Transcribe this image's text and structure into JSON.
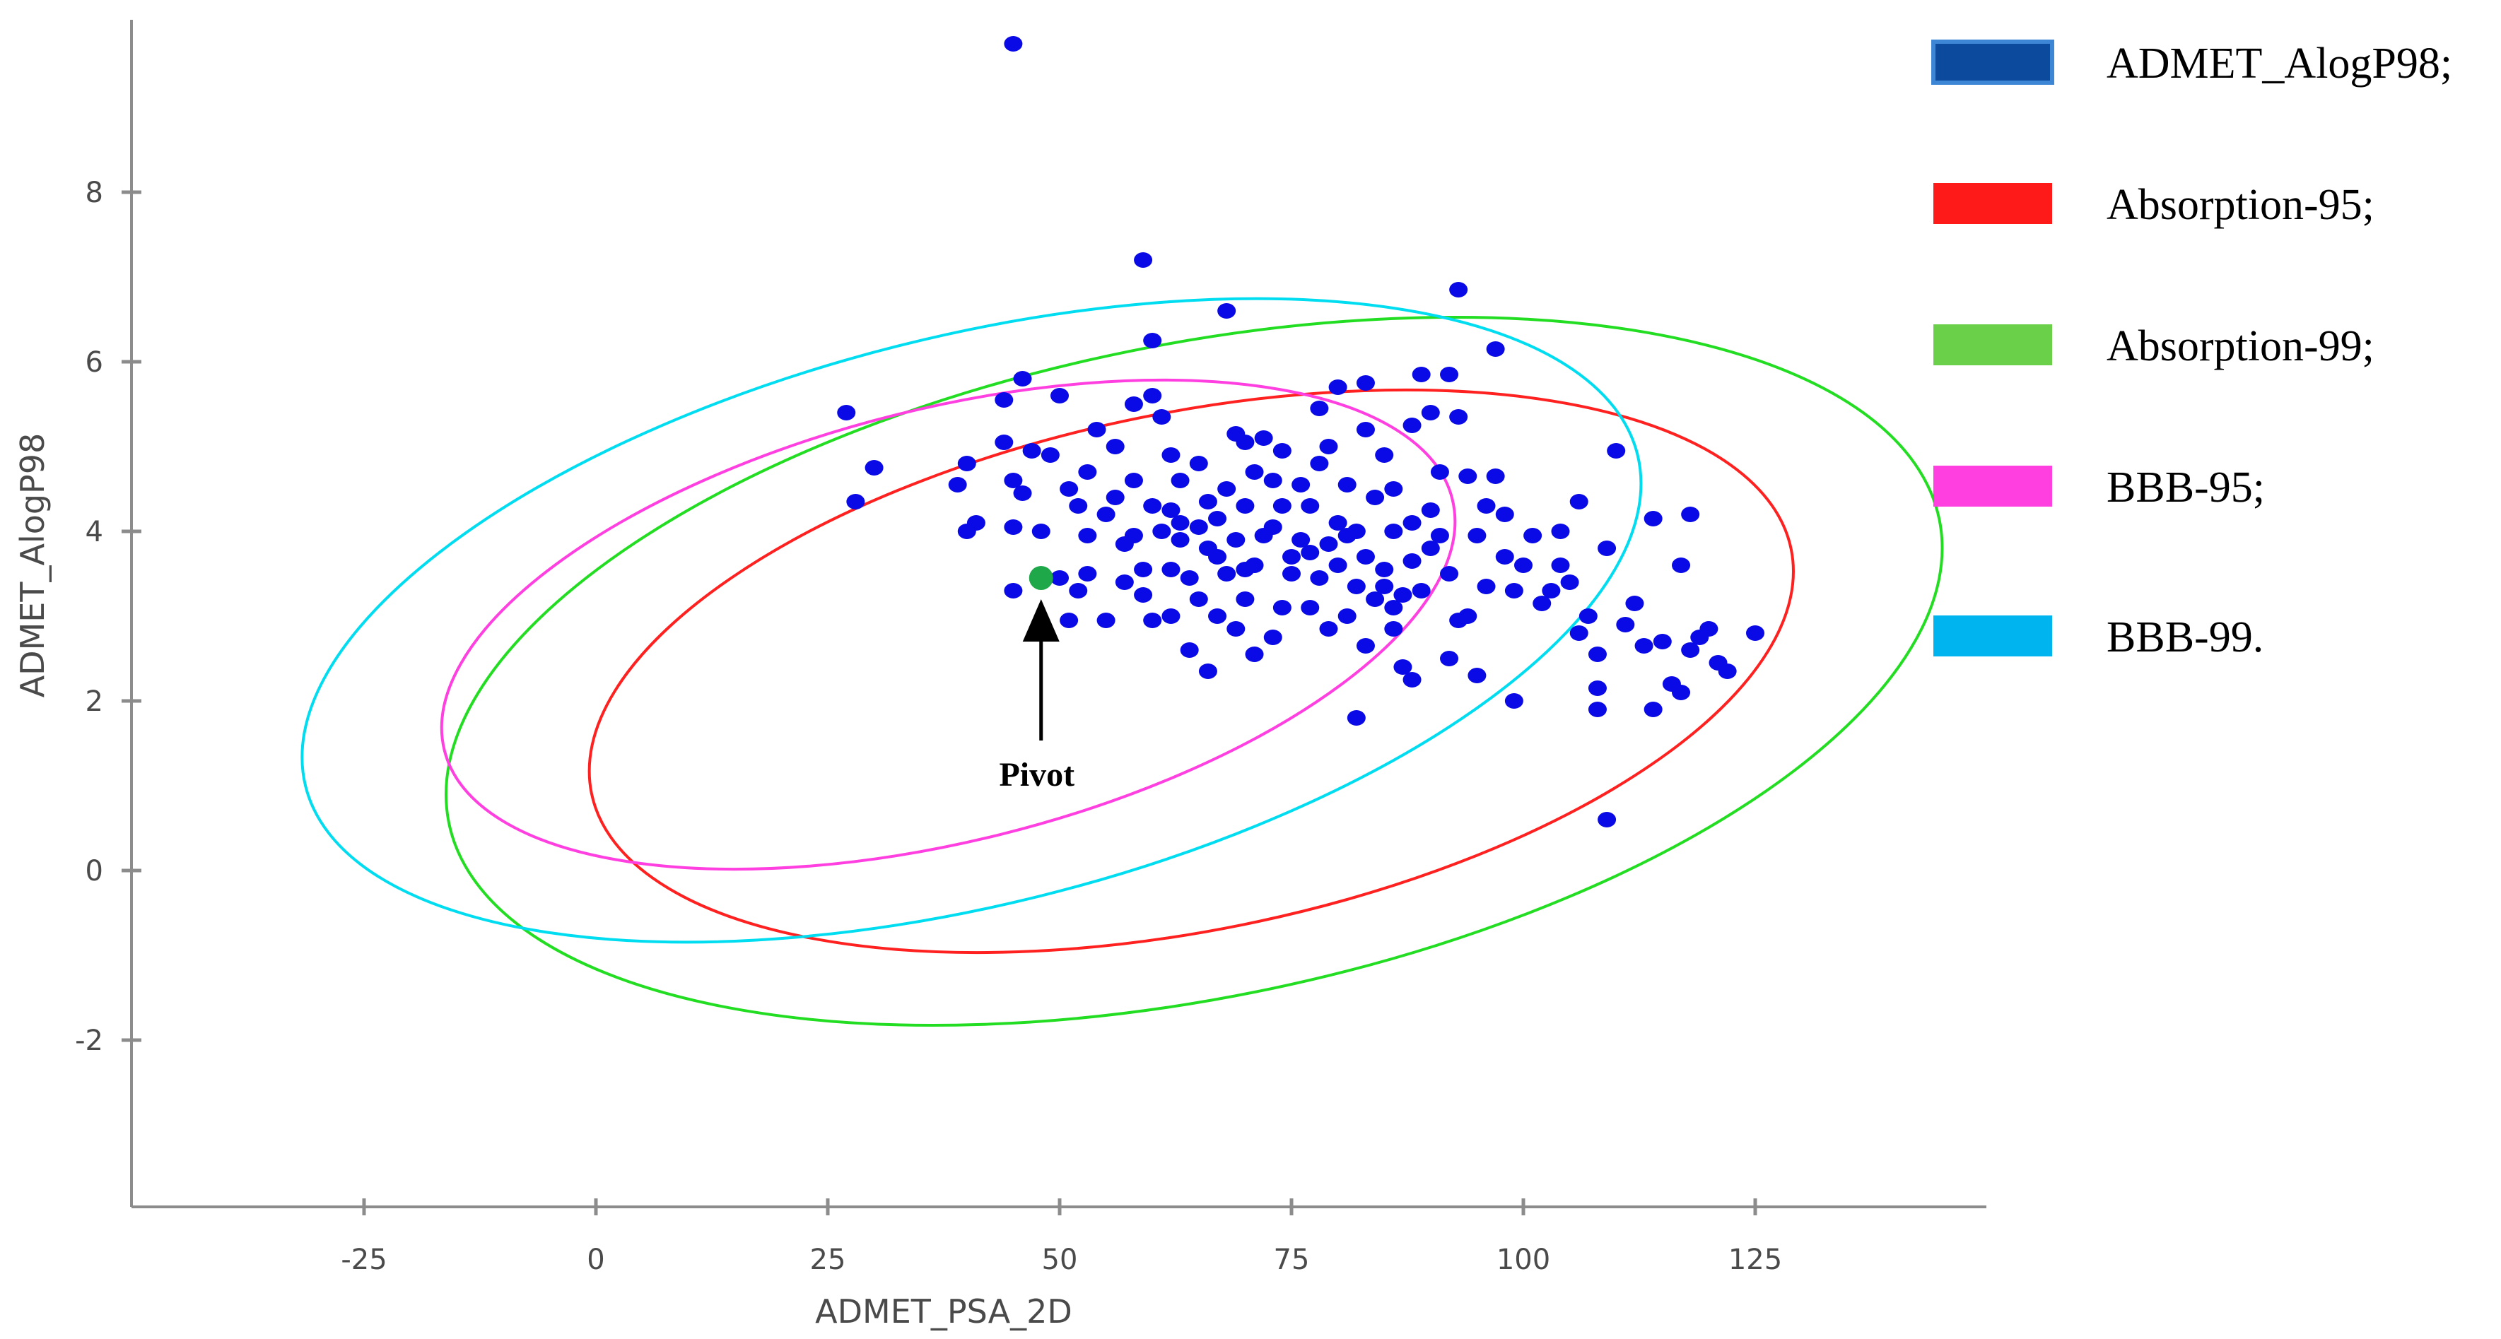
{
  "chart_data": {
    "type": "scatter",
    "xlabel": "ADMET_PSA_2D",
    "ylabel": "ADMET_AlogP98",
    "xlim": [
      -50,
      150
    ],
    "ylim": [
      -4,
      10
    ],
    "x_ticks": [
      -25,
      0,
      25,
      50,
      75,
      100,
      125
    ],
    "y_ticks": [
      -2,
      0,
      2,
      4,
      6,
      8
    ],
    "grid": false,
    "legend_position": "right",
    "colors": {
      "points": "#0a0ae6",
      "pivot": "#1fa84a",
      "axes": "#8c8c8c",
      "arrow": "#000000"
    },
    "legend": [
      {
        "label": "ADMET_AlogP98;",
        "color": "#0b4a9c",
        "border": "#3d86d6"
      },
      {
        "label": "Absorption-95;",
        "color": "#ff1a1a"
      },
      {
        "label": "Absorption-99;",
        "color": "#6ad04a"
      },
      {
        "label": "BBB-95;",
        "color": "#ff3fe0"
      },
      {
        "label": "BBB-99.",
        "color": "#00b4f0"
      }
    ],
    "ellipses": [
      {
        "name": "Absorption-95;",
        "color": "#ff2020",
        "cx": 64.2,
        "cy": 2.35,
        "rx": 66,
        "ry": 3.05,
        "angle_deg": -11.5
      },
      {
        "name": "Absorption-99;",
        "color": "#22dd22",
        "cx": 64.5,
        "cy": 2.35,
        "rx": 82,
        "ry": 3.85,
        "angle_deg": -11.5
      },
      {
        "name": "BBB-95;",
        "color": "#ff3fe0",
        "cx": 38,
        "cy": 2.9,
        "rx": 56,
        "ry": 2.55,
        "angle_deg": -14
      },
      {
        "name": "BBB-99.",
        "color": "#00dcf0",
        "cx": 40.5,
        "cy": 2.95,
        "rx": 74,
        "ry": 3.35,
        "angle_deg": -14
      }
    ],
    "points": [
      [
        45,
        9.75
      ],
      [
        59,
        7.2
      ],
      [
        68,
        6.6
      ],
      [
        93,
        6.85
      ],
      [
        60,
        6.25
      ],
      [
        97,
        6.15
      ],
      [
        27,
        5.4
      ],
      [
        28,
        4.35
      ],
      [
        30,
        4.75
      ],
      [
        39,
        4.55
      ],
      [
        40,
        4.8
      ],
      [
        41,
        4.1
      ],
      [
        40,
        4.0
      ],
      [
        44,
        5.05
      ],
      [
        44,
        5.55
      ],
      [
        46,
        5.8
      ],
      [
        47,
        4.95
      ],
      [
        45,
        4.6
      ],
      [
        46,
        4.45
      ],
      [
        45,
        4.05
      ],
      [
        45,
        3.3
      ],
      [
        48,
        4.0
      ],
      [
        49,
        4.9
      ],
      [
        50,
        5.6
      ],
      [
        51,
        4.5
      ],
      [
        52,
        4.3
      ],
      [
        53,
        4.7
      ],
      [
        50,
        3.45
      ],
      [
        52,
        3.3
      ],
      [
        51,
        2.95
      ],
      [
        55,
        2.95
      ],
      [
        53,
        3.5
      ],
      [
        55,
        4.2
      ],
      [
        57,
        3.85
      ],
      [
        58,
        4.6
      ],
      [
        56,
        5.0
      ],
      [
        54,
        5.2
      ],
      [
        58,
        5.5
      ],
      [
        60,
        5.6
      ],
      [
        61,
        5.35
      ],
      [
        62,
        4.9
      ],
      [
        60,
        4.3
      ],
      [
        61,
        4.0
      ],
      [
        59,
        3.55
      ],
      [
        59,
        3.25
      ],
      [
        60,
        2.95
      ],
      [
        62,
        3.0
      ],
      [
        62,
        3.55
      ],
      [
        64,
        3.45
      ],
      [
        63,
        4.1
      ],
      [
        63,
        4.6
      ],
      [
        65,
        4.8
      ],
      [
        66,
        4.35
      ],
      [
        67,
        4.15
      ],
      [
        66,
        3.8
      ],
      [
        65,
        3.2
      ],
      [
        64,
        2.6
      ],
      [
        66,
        2.35
      ],
      [
        67,
        3.0
      ],
      [
        68,
        3.5
      ],
      [
        69,
        3.9
      ],
      [
        70,
        4.3
      ],
      [
        71,
        4.7
      ],
      [
        69,
        5.15
      ],
      [
        70,
        5.05
      ],
      [
        72,
        5.1
      ],
      [
        73,
        4.6
      ],
      [
        74,
        4.3
      ],
      [
        72,
        3.95
      ],
      [
        71,
        3.6
      ],
      [
        70,
        3.2
      ],
      [
        69,
        2.85
      ],
      [
        71,
        2.55
      ],
      [
        73,
        2.75
      ],
      [
        74,
        3.1
      ],
      [
        75,
        3.5
      ],
      [
        76,
        3.9
      ],
      [
        77,
        4.3
      ],
      [
        78,
        4.8
      ],
      [
        79,
        5.0
      ],
      [
        78,
        5.45
      ],
      [
        80,
        5.7
      ],
      [
        81,
        4.55
      ],
      [
        80,
        4.1
      ],
      [
        79,
        3.85
      ],
      [
        78,
        3.45
      ],
      [
        77,
        3.1
      ],
      [
        79,
        2.85
      ],
      [
        81,
        3.0
      ],
      [
        82,
        3.35
      ],
      [
        83,
        3.7
      ],
      [
        82,
        4.0
      ],
      [
        84,
        4.4
      ],
      [
        83,
        5.2
      ],
      [
        83,
        5.75
      ],
      [
        85,
        4.9
      ],
      [
        86,
        4.5
      ],
      [
        86,
        4.0
      ],
      [
        85,
        3.55
      ],
      [
        84,
        3.2
      ],
      [
        83,
        2.65
      ],
      [
        82,
        1.8
      ],
      [
        86,
        2.85
      ],
      [
        87,
        2.4
      ],
      [
        87,
        3.25
      ],
      [
        88,
        3.65
      ],
      [
        88,
        4.1
      ],
      [
        88,
        5.25
      ],
      [
        89,
        5.85
      ],
      [
        90,
        5.4
      ],
      [
        91,
        4.7
      ],
      [
        90,
        4.25
      ],
      [
        90,
        3.8
      ],
      [
        89,
        3.3
      ],
      [
        88,
        2.25
      ],
      [
        92,
        2.5
      ],
      [
        93,
        2.95
      ],
      [
        92,
        3.5
      ],
      [
        92,
        5.85
      ],
      [
        93,
        5.35
      ],
      [
        94,
        4.65
      ],
      [
        95,
        3.95
      ],
      [
        94,
        3.0
      ],
      [
        95,
        2.3
      ],
      [
        96,
        3.35
      ],
      [
        96,
        4.3
      ],
      [
        97,
        4.65
      ],
      [
        98,
        3.7
      ],
      [
        99,
        3.3
      ],
      [
        100,
        3.6
      ],
      [
        99,
        2.0
      ],
      [
        102,
        3.15
      ],
      [
        104,
        4.0
      ],
      [
        104,
        3.6
      ],
      [
        105,
        3.4
      ],
      [
        106,
        4.35
      ],
      [
        107,
        3.0
      ],
      [
        108,
        2.55
      ],
      [
        106,
        2.8
      ],
      [
        108,
        2.15
      ],
      [
        108,
        1.9
      ],
      [
        109,
        3.8
      ],
      [
        109,
        0.6
      ],
      [
        110,
        4.95
      ],
      [
        111,
        2.9
      ],
      [
        112,
        3.15
      ],
      [
        113,
        2.65
      ],
      [
        114,
        4.15
      ],
      [
        115,
        2.7
      ],
      [
        116,
        2.2
      ],
      [
        117,
        2.1
      ],
      [
        117,
        3.6
      ],
      [
        118,
        2.6
      ],
      [
        119,
        2.75
      ],
      [
        120,
        2.85
      ],
      [
        121,
        2.45
      ],
      [
        122,
        2.35
      ],
      [
        125,
        2.8
      ],
      [
        114,
        1.9
      ],
      [
        118,
        4.2
      ],
      [
        103,
        3.3
      ],
      [
        101,
        3.95
      ],
      [
        74,
        4.95
      ],
      [
        76,
        4.55
      ],
      [
        68,
        4.5
      ],
      [
        67,
        3.7
      ],
      [
        63,
        3.9
      ],
      [
        57,
        3.4
      ],
      [
        53,
        3.95
      ],
      [
        75,
        3.7
      ],
      [
        80,
        3.6
      ],
      [
        85,
        3.35
      ],
      [
        91,
        3.95
      ],
      [
        98,
        4.2
      ],
      [
        70,
        3.55
      ],
      [
        73,
        4.05
      ],
      [
        77,
        3.75
      ],
      [
        81,
        3.95
      ],
      [
        86,
        3.1
      ],
      [
        65,
        4.05
      ],
      [
        62,
        4.25
      ],
      [
        56,
        4.4
      ],
      [
        58,
        3.95
      ]
    ],
    "annotation": {
      "text": "Pivot",
      "x": 48,
      "y": 3.45
    }
  }
}
